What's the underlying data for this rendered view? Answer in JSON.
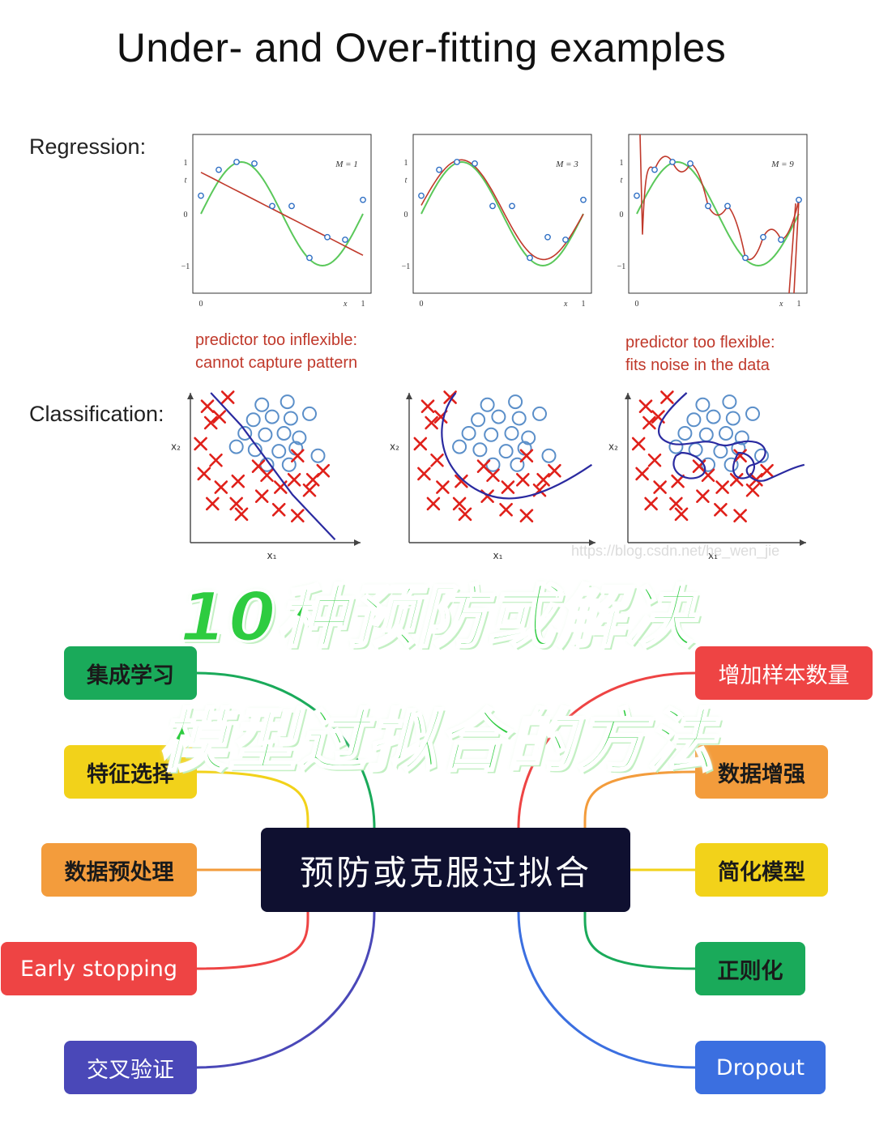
{
  "title": "Under- and Over-fitting examples",
  "rows": {
    "regression_label": "Regression:",
    "classification_label": "Classification:"
  },
  "regression": {
    "axis": {
      "t": "t",
      "x": "x",
      "tick_0": "0",
      "tick_1": "1",
      "tick_neg1": "−1"
    },
    "panels": [
      {
        "label": "M = 1"
      },
      {
        "label": "M = 3"
      },
      {
        "label": "M = 9"
      }
    ],
    "points": [
      [
        0.0,
        0.35
      ],
      [
        0.11,
        0.85
      ],
      [
        0.22,
        1.0
      ],
      [
        0.33,
        0.97
      ],
      [
        0.44,
        0.15
      ],
      [
        0.56,
        0.15
      ],
      [
        0.67,
        -0.85
      ],
      [
        0.78,
        -0.45
      ],
      [
        0.89,
        -0.5
      ],
      [
        1.0,
        0.27
      ]
    ],
    "caption_under": [
      "predictor too inflexible:",
      "cannot capture pattern"
    ],
    "caption_over": [
      "predictor too flexible:",
      "fits noise in the data"
    ],
    "colors": {
      "truth": "#5ac85a",
      "fit": "#c0392b",
      "points": "#2f6fc4"
    }
  },
  "classification": {
    "axis": {
      "x1": "x₁",
      "x2": "x₂"
    },
    "colors": {
      "cross": "#e0201a",
      "circle": "#5b8fc9",
      "boundary": "#2a2aa0"
    }
  },
  "watermark": "https://blog.csdn.net/he_wen_jie",
  "headline": {
    "line1": "10种预防或解决",
    "line2": "模型过拟合的方法"
  },
  "mindmap": {
    "center": "预防或克服过拟合",
    "left": [
      {
        "label": "集成学习",
        "color": "#1aaa5a",
        "text": "dark"
      },
      {
        "label": "特征选择",
        "color": "#f2d21a",
        "text": "dark"
      },
      {
        "label": "数据预处理",
        "color": "#f39c3c",
        "text": "dark"
      },
      {
        "label": "Early stopping",
        "color": "#ee4444",
        "text": "light"
      },
      {
        "label": "交叉验证",
        "color": "#4a48b8",
        "text": "light"
      }
    ],
    "right": [
      {
        "label": "增加样本数量",
        "color": "#ee4444",
        "text": "light"
      },
      {
        "label": "数据增强",
        "color": "#f39c3c",
        "text": "dark"
      },
      {
        "label": "简化模型",
        "color": "#f2d21a",
        "text": "dark"
      },
      {
        "label": "正则化",
        "color": "#1aaa5a",
        "text": "dark"
      },
      {
        "label": "Dropout",
        "color": "#3b6fe0",
        "text": "light"
      }
    ]
  }
}
